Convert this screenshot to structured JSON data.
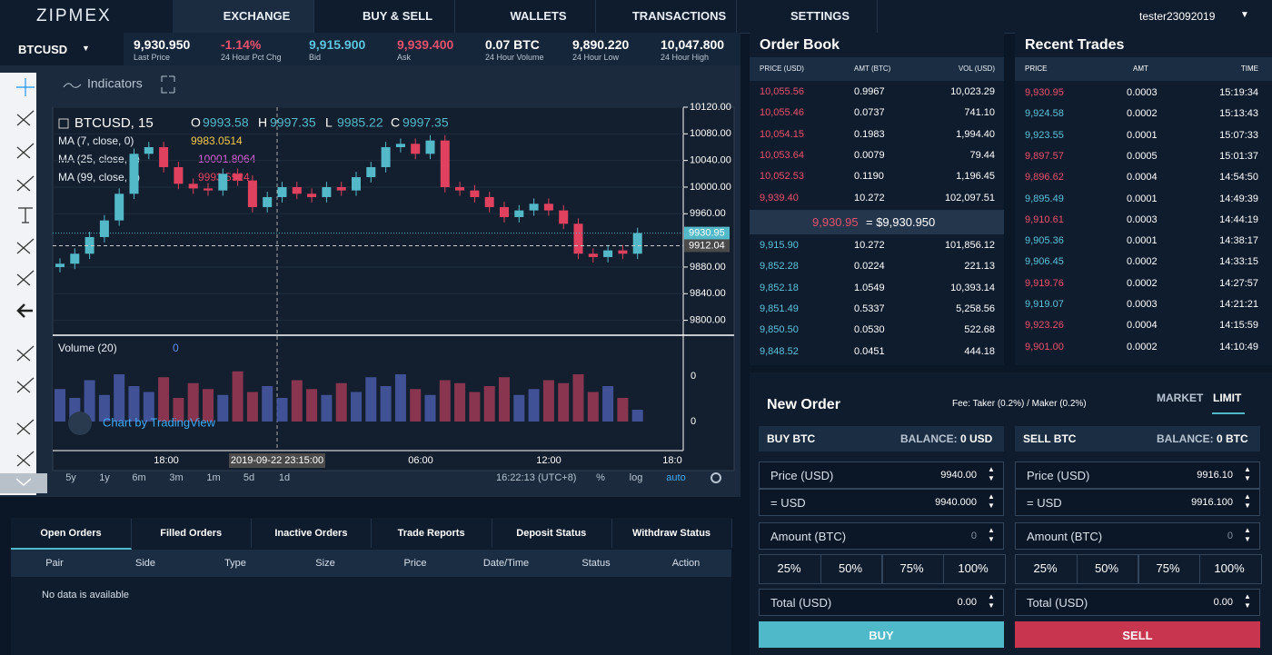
{
  "header": {
    "logo": "ZIPMEX",
    "nav": [
      "EXCHANGE",
      "BUY & SELL",
      "WALLETS",
      "TRANSACTIONS",
      "SETTINGS"
    ],
    "user": "tester23092019"
  },
  "ticker": {
    "pair": "BTCUSD",
    "stats": [
      {
        "value": "9,930.950",
        "label": "Last Price",
        "color": "#ffffff"
      },
      {
        "value": "-1.14%",
        "label": "24 Hour Pct Chg",
        "color": "#e8506c"
      },
      {
        "value": "9,915.900",
        "label": "Bid",
        "color": "#5cc4dc"
      },
      {
        "value": "9,939.400",
        "label": "Ask",
        "color": "#e8506c"
      },
      {
        "value": "0.07 BTC",
        "label": "24 Hour Volume",
        "color": "#ffffff"
      },
      {
        "value": "9,890.220",
        "label": "24 Hour Low",
        "color": "#ffffff"
      },
      {
        "value": "10,047.800",
        "label": "24 Hour High",
        "color": "#ffffff"
      }
    ]
  },
  "chart": {
    "indicators": "Indicators",
    "symbol": "BTCUSD, 15",
    "ohlc": [
      {
        "key": "O",
        "value": "9993.58"
      },
      {
        "key": "H",
        "value": "9997.35"
      },
      {
        "key": "L",
        "value": "9985.22"
      },
      {
        "key": "C",
        "value": "9997.35"
      }
    ],
    "studies": [
      {
        "name": "MA (7, close, 0)",
        "value": "9983.0514",
        "color": "#f2c94c"
      },
      {
        "name": "MA (25, close, 0)",
        "value": "10001.8064",
        "color": "#d85fd8"
      },
      {
        "name": "MA (99, close, 0)",
        "value": "9993.5924",
        "color": "#e0415f"
      }
    ],
    "ylim": [
      9779,
      10120
    ],
    "price_ticks": [
      {
        "value": 10120,
        "label": "10120.00"
      },
      {
        "value": 10080,
        "label": "10080.00"
      },
      {
        "value": 10040,
        "label": "10040.00"
      },
      {
        "value": 10000,
        "label": "10000.00"
      },
      {
        "value": 9960,
        "label": "9960.00"
      },
      {
        "value": 9880,
        "label": "9880.00"
      },
      {
        "value": 9840,
        "label": "9840.00"
      },
      {
        "value": 9800,
        "label": "9800.00"
      }
    ],
    "last_price": 9930.95,
    "cross_price": 9912.04,
    "up_color": "#53b9c9",
    "down_color": "#e0415f",
    "candles": [
      [
        9880,
        9893,
        9872,
        9885
      ],
      [
        9885,
        9908,
        9877,
        9900
      ],
      [
        9900,
        9933,
        9892,
        9925
      ],
      [
        9925,
        9958,
        9917,
        9950
      ],
      [
        9950,
        9998,
        9942,
        9990
      ],
      [
        9990,
        10058,
        9982,
        10050
      ],
      [
        10050,
        10068,
        10042,
        10060
      ],
      [
        10060,
        10068,
        10022,
        10030
      ],
      [
        10030,
        10038,
        9997,
        10005
      ],
      [
        10005,
        10013,
        9990,
        9998
      ],
      [
        9998,
        10006,
        9987,
        9995
      ],
      [
        9995,
        10028,
        9987,
        10020
      ],
      [
        10020,
        10028,
        10002,
        10010
      ],
      [
        10010,
        10018,
        9962,
        9970
      ],
      [
        9970,
        9993,
        9962,
        9985
      ],
      [
        9985,
        10008,
        9977,
        10000
      ],
      [
        10000,
        10008,
        9982,
        9990
      ],
      [
        9990,
        9998,
        9977,
        9985
      ],
      [
        9985,
        10008,
        9977,
        10000
      ],
      [
        10000,
        10008,
        9987,
        9995
      ],
      [
        9995,
        10023,
        9987,
        10015
      ],
      [
        10015,
        10038,
        10007,
        10030
      ],
      [
        10030,
        10068,
        10022,
        10060
      ],
      [
        10060,
        10073,
        10052,
        10065
      ],
      [
        10065,
        10073,
        10042,
        10050
      ],
      [
        10050,
        10078,
        10042,
        10070
      ],
      [
        10070,
        10078,
        9992,
        10000
      ],
      [
        10000,
        10008,
        9987,
        9995
      ],
      [
        9995,
        10003,
        9977,
        9985
      ],
      [
        9985,
        9993,
        9962,
        9970
      ],
      [
        9970,
        9978,
        9947,
        9955
      ],
      [
        9955,
        9973,
        9947,
        9965
      ],
      [
        9965,
        9983,
        9957,
        9975
      ],
      [
        9975,
        9983,
        9957,
        9965
      ],
      [
        9965,
        9973,
        9937,
        9945
      ],
      [
        9945,
        9953,
        9892,
        9900
      ],
      [
        9900,
        9908,
        9887,
        9895
      ],
      [
        9895,
        9913,
        9887,
        9905
      ],
      [
        9905,
        9913,
        9892,
        9900
      ],
      [
        9900,
        9939,
        9892,
        9931
      ]
    ],
    "volume_title": "Volume (20)",
    "volume_value": "0",
    "volume_ticks": [
      "0",
      "0"
    ],
    "vlim": [
      0,
      100
    ],
    "volumes": [
      55,
      40,
      70,
      45,
      80,
      60,
      50,
      75,
      40,
      65,
      55,
      45,
      85,
      50,
      60,
      40,
      70,
      55,
      45,
      65,
      50,
      75,
      60,
      80,
      55,
      45,
      70,
      65,
      50,
      60,
      75,
      45,
      55,
      70,
      65,
      80,
      50,
      60,
      40,
      20
    ],
    "time_ticks": [
      "18:00",
      "06:00",
      "12:00",
      "18:0"
    ],
    "cross_time": "2019-09-22 23:15:00",
    "watermark": "Chart by TradingView",
    "ranges": [
      "5y",
      "1y",
      "6m",
      "3m",
      "1m",
      "5d",
      "1d"
    ],
    "clock": "16:22:13",
    "tz": "(UTC+8)",
    "options": [
      "%",
      "log",
      "auto"
    ]
  },
  "order_book": {
    "title": "Order Book",
    "columns": [
      "PRICE (USD)",
      "AMT (BTC)",
      "VOL (USD)"
    ],
    "asks": [
      [
        "10,055.56",
        "0.9967",
        "10,023.29"
      ],
      [
        "10,055.46",
        "0.0737",
        "741.10"
      ],
      [
        "10,054.15",
        "0.1983",
        "1,994.40"
      ],
      [
        "10,053.64",
        "0.0079",
        "79.44"
      ],
      [
        "10,052.53",
        "0.1190",
        "1,196.45"
      ],
      [
        "9,939.40",
        "10.272",
        "102,097.51"
      ]
    ],
    "mid": {
      "price": "9,930.95",
      "rest": "= $9,930.950"
    },
    "bids": [
      [
        "9,915.90",
        "10.272",
        "101,856.12"
      ],
      [
        "9,852.28",
        "0.0224",
        "221.13"
      ],
      [
        "9,852.18",
        "1.0549",
        "10,393.14"
      ],
      [
        "9,851.49",
        "0.5337",
        "5,258.56"
      ],
      [
        "9,850.50",
        "0.0530",
        "522.68"
      ],
      [
        "9,848.52",
        "0.0451",
        "444.18"
      ]
    ]
  },
  "recent_trades": {
    "title": "Recent Trades",
    "columns": [
      "PRICE",
      "AMT",
      "TIME"
    ],
    "rows": [
      {
        "cells": [
          "9,930.95",
          "0.0003",
          "15:19:34"
        ],
        "color": "#e8506c"
      },
      {
        "cells": [
          "9,924.58",
          "0.0002",
          "15:13:43"
        ],
        "color": "#5cc4dc"
      },
      {
        "cells": [
          "9,923.55",
          "0.0001",
          "15:07:33"
        ],
        "color": "#5cc4dc"
      },
      {
        "cells": [
          "9,897.57",
          "0.0005",
          "15:01:37"
        ],
        "color": "#e8506c"
      },
      {
        "cells": [
          "9,896.62",
          "0.0004",
          "14:54:50"
        ],
        "color": "#e8506c"
      },
      {
        "cells": [
          "9,895.49",
          "0.0001",
          "14:49:39"
        ],
        "color": "#5cc4dc"
      },
      {
        "cells": [
          "9,910.61",
          "0.0003",
          "14:44:19"
        ],
        "color": "#e8506c"
      },
      {
        "cells": [
          "9,905.36",
          "0.0001",
          "14:38:17"
        ],
        "color": "#5cc4dc"
      },
      {
        "cells": [
          "9,906.45",
          "0.0002",
          "14:33:15"
        ],
        "color": "#5cc4dc"
      },
      {
        "cells": [
          "9,919.76",
          "0.0002",
          "14:27:57"
        ],
        "color": "#e8506c"
      },
      {
        "cells": [
          "9,919.07",
          "0.0003",
          "14:21:21"
        ],
        "color": "#5cc4dc"
      },
      {
        "cells": [
          "9,923.26",
          "0.0004",
          "14:15:59"
        ],
        "color": "#e8506c"
      },
      {
        "cells": [
          "9,901.00",
          "0.0002",
          "14:10:49"
        ],
        "color": "#e8506c"
      }
    ]
  },
  "new_order": {
    "title": "New Order",
    "fee": "Fee: Taker (0.2%) / Maker (0.2%)",
    "modes": [
      "MARKET",
      "LIMIT"
    ],
    "sides": [
      {
        "title": "BUY BTC",
        "balance_label": "BALANCE:",
        "balance": "0 USD",
        "price_label": "Price (USD)",
        "price": "9940.00",
        "usd_label": "= USD",
        "usd": "9940.000",
        "amount_label": "Amount (BTC)",
        "amount": "0",
        "percents": [
          "25%",
          "50%",
          "75%",
          "100%"
        ],
        "total_label": "Total (USD)",
        "total": "0.00",
        "button": "BUY",
        "color": "#4fb9c9"
      },
      {
        "title": "SELL BTC",
        "balance_label": "BALANCE:",
        "balance": "0 BTC",
        "price_label": "Price (USD)",
        "price": "9916.10",
        "usd_label": "= USD",
        "usd": "9916.100",
        "amount_label": "Amount (BTC)",
        "amount": "0",
        "percents": [
          "25%",
          "50%",
          "75%",
          "100%"
        ],
        "total_label": "Total (USD)",
        "total": "0.00",
        "button": "SELL",
        "color": "#c8354f"
      }
    ]
  },
  "orders": {
    "tabs": [
      "Open Orders",
      "Filled Orders",
      "Inactive Orders",
      "Trade Reports",
      "Deposit Status",
      "Withdraw Status"
    ],
    "columns": [
      "Pair",
      "Side",
      "Type",
      "Size",
      "Price",
      "Date/Time",
      "Status",
      "Action"
    ],
    "empty": "No data is available"
  }
}
